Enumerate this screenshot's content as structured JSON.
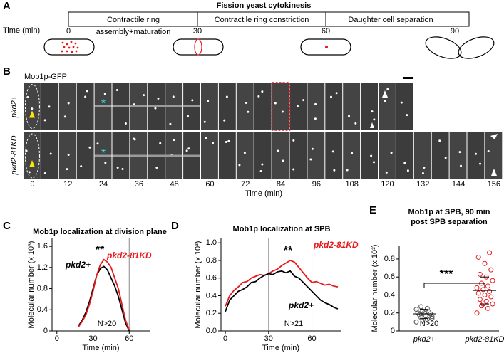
{
  "panel_a": {
    "label": "A",
    "title": "Fission yeast cytokinesis",
    "time_label": "Time (min)",
    "phases": [
      "Contractile ring",
      "Contractile ring constriction",
      "Daughter cell separation"
    ],
    "phase_subtitle": "assembly+maturation",
    "times": [
      0,
      30,
      60,
      90
    ]
  },
  "panel_b": {
    "label": "B",
    "marker": "Mob1p-GFP",
    "rows": [
      "pkd2+",
      "pkd2-81KD"
    ],
    "times": [
      0,
      12,
      24,
      36,
      48,
      60,
      72,
      84,
      96,
      108,
      120,
      132,
      144,
      156
    ],
    "time_label": "Time (min)"
  },
  "chart_data": [
    {
      "label": "C",
      "type": "line",
      "title": "Mob1p localization at division plane",
      "xlabel": "Time (min)",
      "ylabel": "Molecular number (x 10³)",
      "x": [
        18,
        21,
        24,
        27,
        30,
        33,
        36,
        39,
        42,
        45,
        48,
        51,
        54,
        57,
        60
      ],
      "series": [
        {
          "name": "pkd2+",
          "color": "#000000",
          "values": [
            0.1,
            0.2,
            0.35,
            0.55,
            0.8,
            1.05,
            1.18,
            1.22,
            1.15,
            1.0,
            0.85,
            0.65,
            0.4,
            0.15,
            0.0
          ]
        },
        {
          "name": "pkd2-81KD",
          "color": "#e8191c",
          "values": [
            0.08,
            0.18,
            0.3,
            0.5,
            0.75,
            1.05,
            1.25,
            1.35,
            1.3,
            1.2,
            1.0,
            0.8,
            0.5,
            0.2,
            0.02
          ]
        }
      ],
      "xlim": [
        -4,
        77
      ],
      "ylim": [
        0,
        1.75
      ],
      "xticks": [
        0,
        30,
        60
      ],
      "yticks": [
        0,
        0.4,
        0.8,
        1.2,
        1.6
      ],
      "vlines": [
        30,
        60
      ],
      "annotations": [
        "**",
        "N>20"
      ]
    },
    {
      "label": "D",
      "type": "line",
      "title": "Mob1p localization at SPB",
      "xlabel": "Time (min)",
      "ylabel": "Molecular number (x 10³)",
      "x": [
        0,
        3,
        6,
        9,
        12,
        15,
        18,
        21,
        24,
        27,
        30,
        33,
        36,
        39,
        42,
        45,
        48,
        51,
        54,
        57,
        60,
        63,
        66,
        69,
        72,
        75,
        78
      ],
      "series": [
        {
          "name": "pkd2-81KD",
          "color": "#e8191c",
          "values": [
            0.28,
            0.4,
            0.46,
            0.5,
            0.55,
            0.56,
            0.6,
            0.62,
            0.64,
            0.63,
            0.65,
            0.68,
            0.7,
            0.74,
            0.77,
            0.8,
            0.78,
            0.72,
            0.66,
            0.6,
            0.55,
            0.56,
            0.54,
            0.52,
            0.53,
            0.51,
            0.5
          ]
        },
        {
          "name": "pkd2+",
          "color": "#000000",
          "values": [
            0.22,
            0.35,
            0.4,
            0.45,
            0.47,
            0.5,
            0.55,
            0.56,
            0.6,
            0.63,
            0.65,
            0.64,
            0.67,
            0.68,
            0.66,
            0.68,
            0.62,
            0.6,
            0.55,
            0.5,
            0.45,
            0.4,
            0.35,
            0.32,
            0.3,
            0.27,
            0.25
          ]
        }
      ],
      "xlim": [
        -3,
        80
      ],
      "ylim": [
        0,
        1.05
      ],
      "xticks": [
        0,
        30,
        60
      ],
      "yticks": [
        {
          "value": 0,
          "label": "0.0"
        },
        0.2,
        0.4,
        0.6,
        0.8,
        {
          "value": 1,
          "label": "1.0"
        }
      ],
      "vlines": [
        30,
        60
      ],
      "annotations": [
        "**",
        "N>21"
      ]
    },
    {
      "label": "E",
      "type": "scatter",
      "title": [
        "Mob1p at SPB, 90 min",
        "post SPB separation"
      ],
      "ylabel": "Molecular number (x 10³)",
      "categories": [
        "pkd2+",
        "pkd2-81KD"
      ],
      "series": [
        {
          "color": "#555555",
          "values": [
            0.1,
            0.13,
            0.15,
            0.16,
            0.17,
            0.18,
            0.19,
            0.2,
            0.2,
            0.21,
            0.22,
            0.24,
            0.25,
            0.27,
            0.14,
            0.12
          ],
          "mean": 0.19,
          "sd": 0.05
        },
        {
          "color": "#e8191c",
          "values": [
            0.2,
            0.25,
            0.28,
            0.3,
            0.33,
            0.35,
            0.38,
            0.4,
            0.42,
            0.44,
            0.46,
            0.48,
            0.5,
            0.53,
            0.56,
            0.6,
            0.63,
            0.68,
            0.75,
            0.82,
            0.87,
            0.3
          ],
          "mean": 0.45,
          "sd": 0.15
        }
      ],
      "ylim": [
        0,
        0.95
      ],
      "yticks": [
        0,
        0.2,
        0.4,
        0.6,
        0.8
      ],
      "annotations": [
        "***",
        "N>20"
      ]
    }
  ]
}
